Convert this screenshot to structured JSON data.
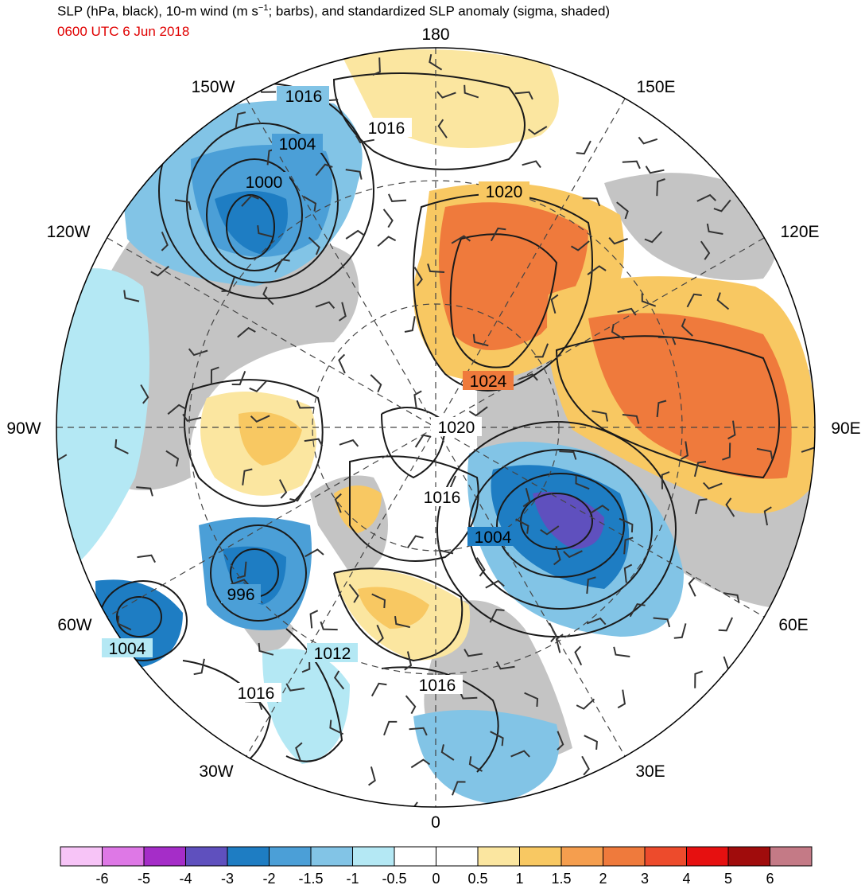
{
  "header": {
    "title_main": "SLP (hPa, black), 10-m wind (m s",
    "title_sup": "−1",
    "title_rest": "; barbs), and standardized SLP anomaly (sigma, shaded)",
    "datetime": "0600 UTC 6 Jun 2018"
  },
  "map": {
    "projection": "north polar stereographic",
    "longitude_labels": [
      "180",
      "150E",
      "120E",
      "90E",
      "60E",
      "30E",
      "0",
      "30W",
      "60W",
      "90W",
      "120W",
      "150W"
    ],
    "isobar_labels": [
      "1016",
      "1004",
      "1000",
      "1016",
      "1020",
      "1024",
      "1020",
      "1016",
      "1004",
      "996",
      "1012",
      "1004",
      "1016",
      "1016"
    ],
    "colors": {
      "land": "#c4c4c4",
      "isobar": "#1a1a1a",
      "barb": "#333333",
      "grid": "#444444"
    }
  },
  "colorbar": {
    "labels": [
      "-6",
      "-5",
      "-4",
      "-3",
      "-2",
      "-1.5",
      "-1",
      "-0.5",
      "0",
      "0.5",
      "1",
      "1.5",
      "2",
      "3",
      "4",
      "5",
      "6"
    ],
    "colors": [
      "#f7c4f7",
      "#de78e6",
      "#a52dc8",
      "#5f50be",
      "#1e7dc3",
      "#4b9fd7",
      "#82c4e6",
      "#b4e8f4",
      "#ffffff",
      "#ffffff",
      "#fbe6a0",
      "#f8c862",
      "#f59e4e",
      "#ef7a3c",
      "#ed4b2c",
      "#e61010",
      "#a00c0c",
      "#c47a86"
    ]
  }
}
